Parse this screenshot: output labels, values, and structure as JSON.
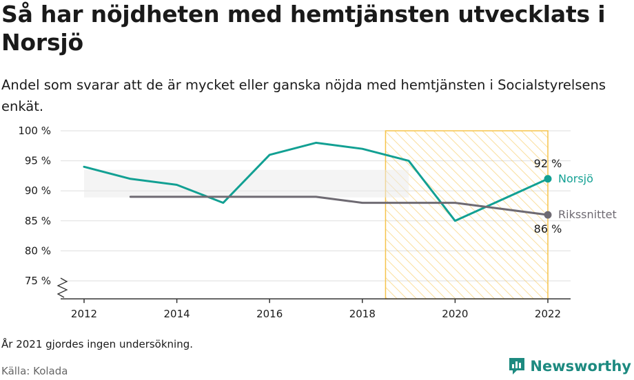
{
  "title": "Så har nöjdheten med hemtjänsten utvecklats i Norsjö",
  "subtitle": "Andel som svarar att de är mycket eller ganska nöjda med hemtjänsten i Socialstyrelsens enkät.",
  "note": "År 2021 gjordes ingen undersökning.",
  "source": "Källa: Kolada",
  "brand": "Newsworthy",
  "colors": {
    "norsjo": "#12a093",
    "riket": "#6e6a72",
    "highlight": "#f5c34a",
    "grid": "#dddddd"
  },
  "chart_data": {
    "type": "line",
    "x_ticks": [
      2012,
      2014,
      2016,
      2018,
      2020,
      2022
    ],
    "y_ticks": [
      75,
      80,
      85,
      90,
      95,
      100
    ],
    "y_tick_labels": [
      "75 %",
      "80 %",
      "85 %",
      "90 %",
      "95 %",
      "100 %"
    ],
    "xlim": [
      2011.5,
      2022.5
    ],
    "ylim": [
      72,
      100
    ],
    "highlight_range": [
      2018.5,
      2022
    ],
    "series": [
      {
        "name": "Norsjö",
        "color": "#12a093",
        "x": [
          2012,
          2013,
          2014,
          2015,
          2016,
          2017,
          2018,
          2019,
          2020,
          2022
        ],
        "y": [
          94,
          92,
          91,
          88,
          96,
          98,
          97,
          95,
          85,
          92
        ],
        "end_label": "92 %"
      },
      {
        "name": "Rikssnittet",
        "color": "#6e6a72",
        "x": [
          2013,
          2014,
          2015,
          2016,
          2017,
          2018,
          2019,
          2020,
          2022
        ],
        "y": [
          89,
          89,
          89,
          89,
          89,
          88,
          88,
          88,
          86
        ],
        "end_label": "86 %"
      }
    ]
  }
}
